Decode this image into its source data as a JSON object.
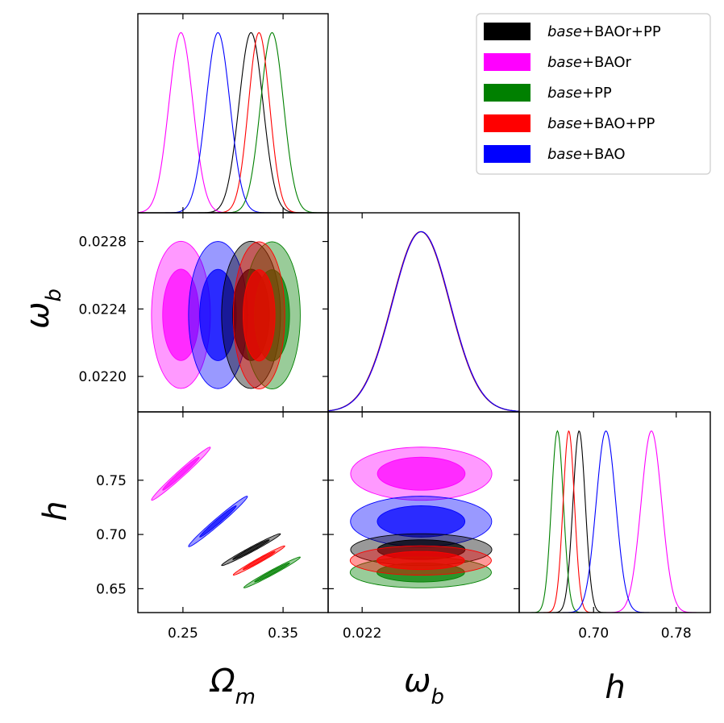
{
  "chart_data": {
    "type": "corner",
    "params": [
      {
        "key": "om",
        "label": "Ωm",
        "label_main": "Ω",
        "label_sub": "m",
        "range": [
          0.205,
          0.395
        ],
        "ticks": [
          0.25,
          0.35
        ],
        "tick_labels": [
          "0.25",
          "0.35"
        ]
      },
      {
        "key": "ob",
        "label": "ωb",
        "label_main": "ω",
        "label_sub": "b",
        "range": [
          0.02179,
          0.02297
        ],
        "ticks": [
          0.022,
          0.0224,
          0.0228
        ],
        "tick_labels": [
          "0.0220",
          "0.0224",
          "0.0228"
        ],
        "x_tick_labels": [
          "0.022"
        ]
      },
      {
        "key": "h",
        "label": "h",
        "label_main": "h",
        "label_sub": "",
        "range": [
          0.628,
          0.813
        ],
        "ticks": [
          0.65,
          0.7,
          0.75,
          0.78
        ],
        "tick_labels": [
          "0.65",
          "0.70",
          "0.75"
        ],
        "x_ticks": [
          0.7,
          0.78
        ],
        "x_tick_labels": [
          "0.70",
          "0.78"
        ]
      }
    ],
    "legend": {
      "position": "top-right",
      "entries": [
        {
          "prefix": "base",
          "suffix": "+BAOr+PP",
          "color": "#000000"
        },
        {
          "prefix": "base",
          "suffix": "+BAOr",
          "color": "#ff00ff"
        },
        {
          "prefix": "base",
          "suffix": "+PP",
          "color": "#008000"
        },
        {
          "prefix": "base",
          "suffix": "+BAO+PP",
          "color": "#ff0000"
        },
        {
          "prefix": "base",
          "suffix": "+BAO",
          "color": "#0000ff"
        }
      ]
    },
    "series": [
      {
        "color": "#000000",
        "om": [
          0.318,
          0.012
        ],
        "ob": [
          0.022365,
          0.000178
        ],
        "h": [
          0.686,
          0.006
        ]
      },
      {
        "color": "#ff00ff",
        "om": [
          0.248,
          0.012
        ],
        "ob": [
          0.022365,
          0.000178
        ],
        "h": [
          0.756,
          0.01
        ]
      },
      {
        "color": "#008000",
        "om": [
          0.339,
          0.0115
        ],
        "ob": [
          0.022362,
          0.000178
        ],
        "h": [
          0.665,
          0.0058
        ]
      },
      {
        "color": "#ff0000",
        "om": [
          0.326,
          0.0105
        ],
        "ob": [
          0.022362,
          0.000178
        ],
        "h": [
          0.676,
          0.0055
        ]
      },
      {
        "color": "#0000ff",
        "om": [
          0.285,
          0.012
        ],
        "ob": [
          0.022364,
          0.000178
        ],
        "h": [
          0.712,
          0.0095
        ]
      }
    ]
  }
}
